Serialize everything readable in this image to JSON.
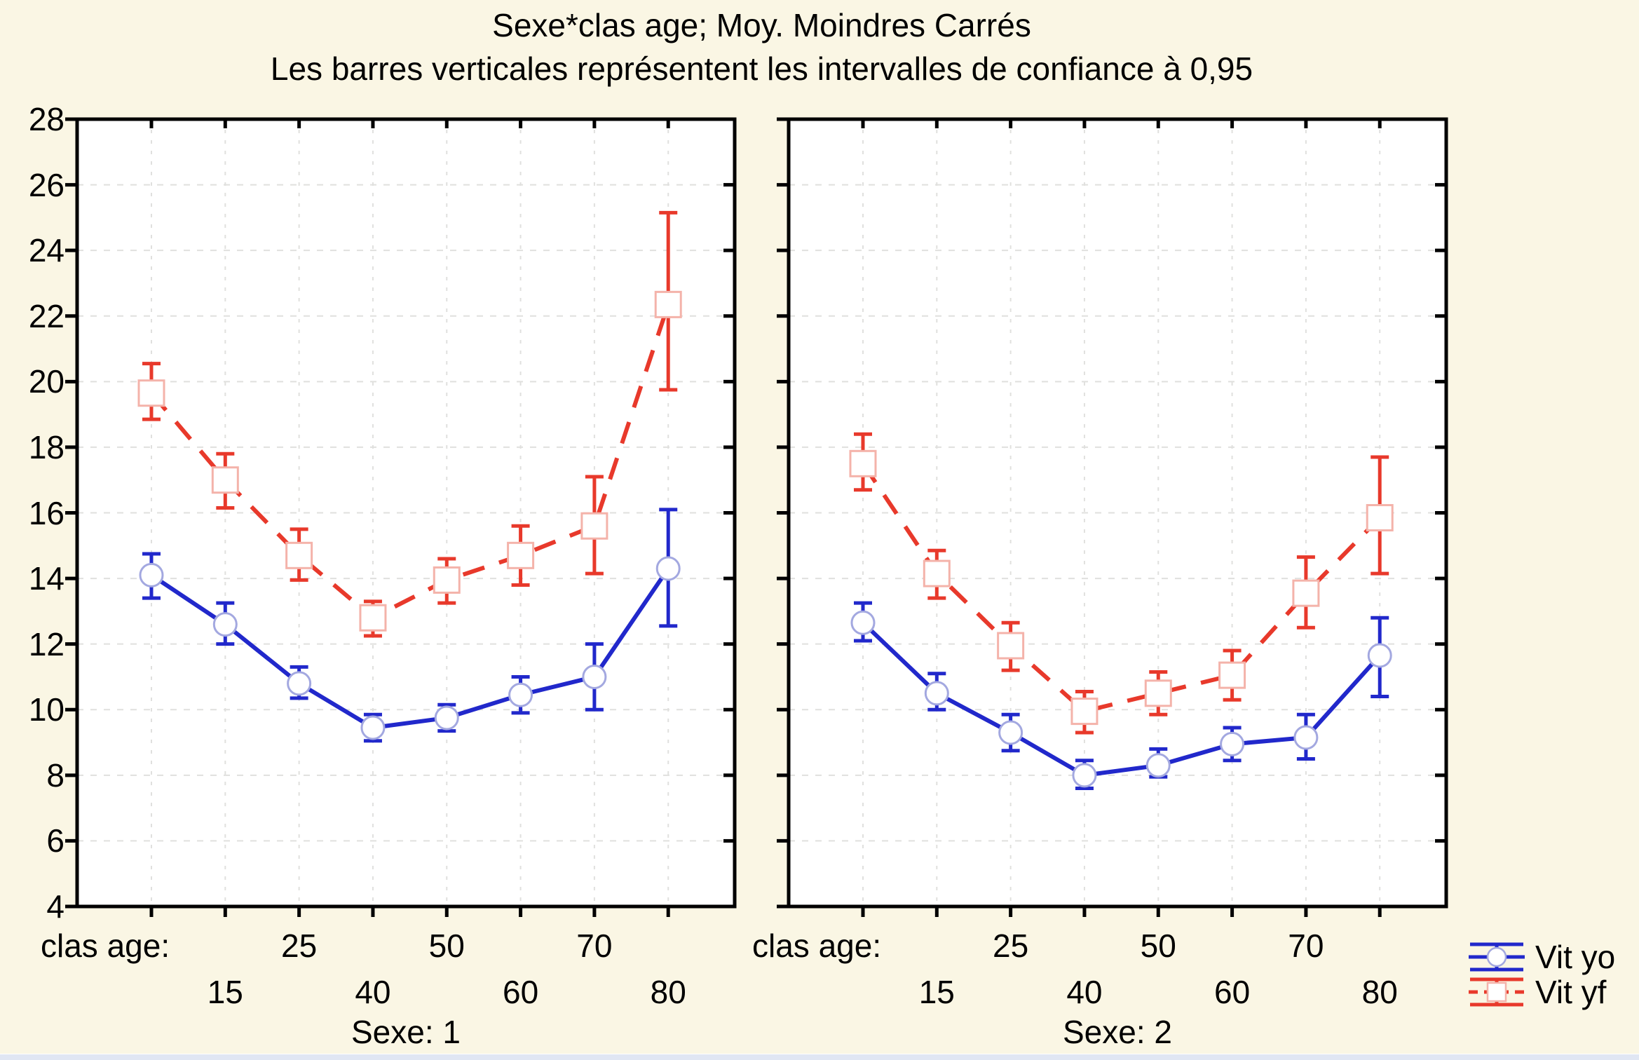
{
  "title": "Sexe*clas age; Moy. Moindres Carrés",
  "subtitle": "Les barres verticales représentent les intervalles de confiance à 0,95",
  "colors": {
    "background": "#FAF6E4",
    "plot_background": "#FFFFFF",
    "axis": "#000000",
    "gridline": "#E0E0DE",
    "series_yo": "#2128CB",
    "series_yf": "#E8392B",
    "marker_edge_yo": "#A3A8E0",
    "marker_edge_yf": "#F4B3AA",
    "bottom_strip": "#E0E6F3"
  },
  "chart_data": {
    "type": "line",
    "title": "Sexe*clas age; Moy. Moindres Carrés",
    "subtitle": "Les barres verticales représentent les intervalles de confiance à 0,95",
    "error_bars": "0.95 confidence intervals",
    "y_axis": {
      "min": 4,
      "max": 28,
      "step": 2,
      "grid": true
    },
    "x_axis": {
      "factor_label": "clas age:",
      "categories": [
        "",
        "15",
        "25",
        "40",
        "50",
        "60",
        "70",
        "80"
      ],
      "top_row_indices": [
        2,
        4,
        6
      ],
      "bottom_row_indices": [
        1,
        3,
        5,
        7
      ]
    },
    "legend_position": "bottom-right",
    "series_styles": [
      {
        "name": "Vit yo",
        "color": "#2128CB",
        "line": "solid",
        "marker": "circle",
        "marker_edge": "#A3A8E0"
      },
      {
        "name": "Vit yf",
        "color": "#E8392B",
        "line": "dashed",
        "marker": "square",
        "marker_edge": "#F4B3AA"
      }
    ],
    "panels": [
      {
        "caption": "Sexe: 1",
        "series": [
          {
            "name": "Vit yo",
            "mean": [
              14.1,
              12.6,
              10.8,
              9.45,
              9.75,
              10.45,
              11.0,
              14.3
            ],
            "ci_low": [
              13.4,
              12.0,
              10.35,
              9.05,
              9.35,
              9.9,
              10.0,
              12.55
            ],
            "ci_high": [
              14.75,
              13.25,
              11.3,
              9.85,
              10.15,
              11.0,
              12.0,
              16.1
            ]
          },
          {
            "name": "Vit yf",
            "mean": [
              19.65,
              17.0,
              14.7,
              12.8,
              13.95,
              14.7,
              15.6,
              22.35
            ],
            "ci_low": [
              18.85,
              16.15,
              13.95,
              12.25,
              13.25,
              13.8,
              14.15,
              19.75
            ],
            "ci_high": [
              20.55,
              17.8,
              15.5,
              13.3,
              14.6,
              15.6,
              17.1,
              25.15
            ]
          }
        ]
      },
      {
        "caption": "Sexe: 2",
        "series": [
          {
            "name": "Vit yo",
            "mean": [
              12.65,
              10.5,
              9.3,
              8.0,
              8.3,
              8.95,
              9.15,
              11.65
            ],
            "ci_low": [
              12.1,
              10.0,
              8.75,
              7.6,
              7.95,
              8.45,
              8.5,
              10.4
            ],
            "ci_high": [
              13.25,
              11.1,
              9.85,
              8.45,
              8.8,
              9.45,
              9.85,
              12.8
            ]
          },
          {
            "name": "Vit yf",
            "mean": [
              17.5,
              14.15,
              11.95,
              9.95,
              10.5,
              11.05,
              13.55,
              15.85
            ],
            "ci_low": [
              16.7,
              13.4,
              11.2,
              9.3,
              9.85,
              10.3,
              12.5,
              14.15
            ],
            "ci_high": [
              18.4,
              14.85,
              12.65,
              10.55,
              11.15,
              11.8,
              14.65,
              17.7
            ]
          }
        ]
      }
    ],
    "legend": [
      {
        "label": "Vit yo"
      },
      {
        "label": "Vit yf"
      }
    ]
  }
}
